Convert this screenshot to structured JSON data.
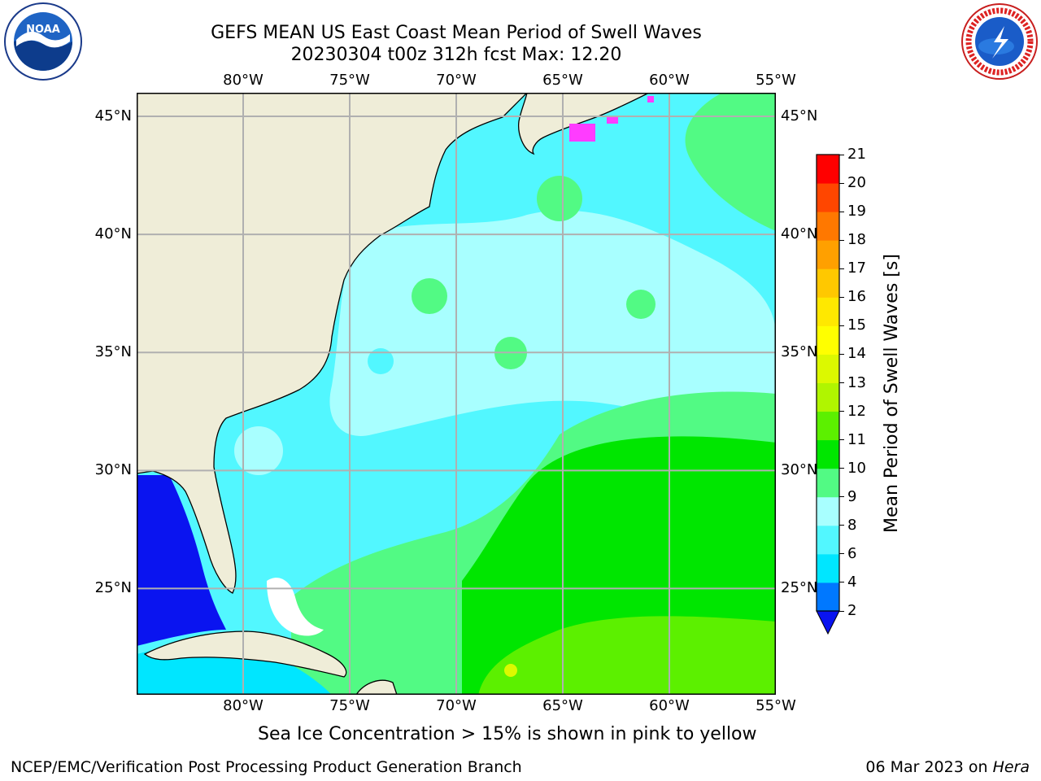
{
  "title": {
    "line1": "GEFS MEAN US East Coast Mean Period of Swell Waves",
    "line2": "20230304 t00z 312h fcst   Max: 12.20"
  },
  "logos": {
    "left": {
      "icon": "noaa-logo",
      "text": "NOAA"
    },
    "right": {
      "icon": "nws-logo",
      "text": "NATIONAL WEATHER SERVICE"
    }
  },
  "map": {
    "lon_range": [
      -85,
      -55
    ],
    "lat_range": [
      20.5,
      46
    ],
    "lon_ticks": [
      {
        "value": -80,
        "label": "80°W"
      },
      {
        "value": -75,
        "label": "75°W"
      },
      {
        "value": -70,
        "label": "70°W"
      },
      {
        "value": -65,
        "label": "65°W"
      },
      {
        "value": -60,
        "label": "60°W"
      },
      {
        "value": -55,
        "label": "55°W"
      }
    ],
    "lat_ticks": [
      {
        "value": 45,
        "label": "45°N"
      },
      {
        "value": 40,
        "label": "40°N"
      },
      {
        "value": 35,
        "label": "35°N"
      },
      {
        "value": 30,
        "label": "30°N"
      },
      {
        "value": 25,
        "label": "25°N"
      }
    ],
    "colors": {
      "land": "#efedd8",
      "coast": "#000000",
      "grid": "#b0b0b0"
    }
  },
  "colorbar": {
    "label": "Mean Period of Swell Waves [s]",
    "ticks": [
      "2",
      "4",
      "6",
      "8",
      "9",
      "10",
      "11",
      "12",
      "13",
      "14",
      "15",
      "16",
      "17",
      "18",
      "19",
      "20",
      "21"
    ],
    "levels": [
      2,
      4,
      6,
      8,
      9,
      10,
      11,
      12,
      13,
      14,
      15,
      16,
      17,
      18,
      19,
      20,
      21
    ],
    "colors": [
      "#0078ff",
      "#00e6ff",
      "#52f7ff",
      "#a8ffff",
      "#52fa84",
      "#00e600",
      "#5cf000",
      "#b0f500",
      "#dcf900",
      "#ffff00",
      "#ffe800",
      "#ffc800",
      "#ffa000",
      "#ff7800",
      "#ff4600",
      "#ff0000"
    ],
    "under_color": "#0a14f0"
  },
  "footer": {
    "note": "Sea Ice Concentration > 15% is shown in pink to yellow",
    "branch": "NCEP/EMC/Verification Post Processing Product Generation Branch",
    "date": "06 Mar 2023 on ",
    "machine": "Hera"
  }
}
